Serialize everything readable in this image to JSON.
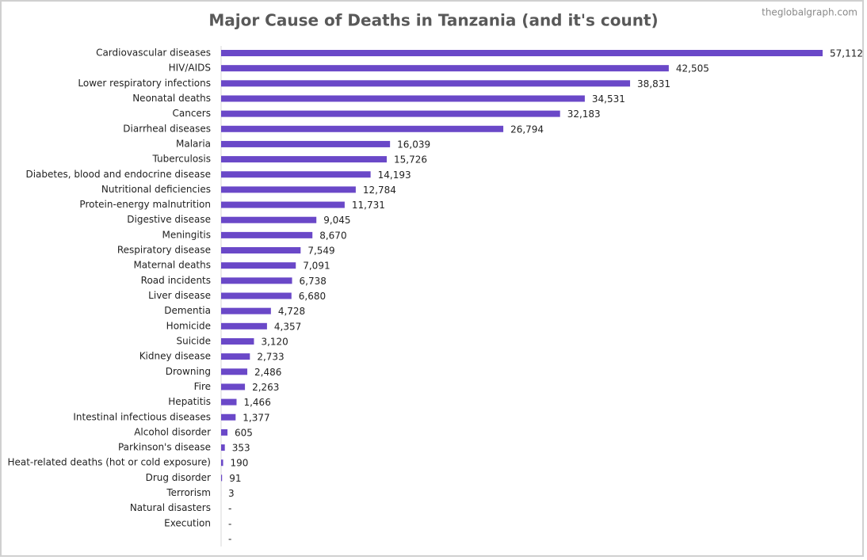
{
  "chart_data": {
    "type": "bar",
    "orientation": "horizontal",
    "title": "Major Cause of Deaths in Tanzania (and it's count)",
    "source": "theglobalgraph.com",
    "color": "#6a48c8",
    "categories": [
      "Cardiovascular diseases",
      "HIV/AIDS",
      "Lower respiratory infections",
      "Neonatal deaths",
      "Cancers",
      "Diarrheal diseases",
      "Malaria",
      "Tuberculosis",
      "Diabetes, blood and endocrine disease",
      "Nutritional deficiencies",
      "Protein-energy malnutrition",
      "Digestive disease",
      "Meningitis",
      "Respiratory disease",
      "Maternal deaths",
      "Road incidents",
      "Liver disease",
      "Dementia",
      "Homicide",
      "Suicide",
      "Kidney disease",
      "Drowning",
      "Fire",
      "Hepatitis",
      "Intestinal infectious diseases",
      "Alcohol disorder",
      "Parkinson's disease",
      "Heat-related deaths (hot or cold exposure)",
      "Drug disorder",
      "Terrorism",
      "Natural disasters",
      "Execution",
      null
    ],
    "values": [
      57112,
      42505,
      38831,
      34531,
      32183,
      26794,
      16039,
      15726,
      14193,
      12784,
      11731,
      9045,
      8670,
      7549,
      7091,
      6738,
      6680,
      4728,
      4357,
      3120,
      2733,
      2486,
      2263,
      1466,
      1377,
      605,
      353,
      190,
      91,
      3,
      0,
      0,
      0
    ],
    "value_labels": [
      "57,112",
      "42,505",
      "38,831",
      "34,531",
      "32,183",
      "26,794",
      "16,039",
      "15,726",
      "14,193",
      "12,784",
      "11,731",
      "9,045",
      "8,670",
      "7,549",
      "7,091",
      "6,738",
      "6,680",
      "4,728",
      "4,357",
      "3,120",
      "2,733",
      "2,486",
      "2,263",
      "1,466",
      "1,377",
      "605",
      "353",
      "190",
      "91",
      "3",
      "-",
      "-",
      "-"
    ]
  }
}
